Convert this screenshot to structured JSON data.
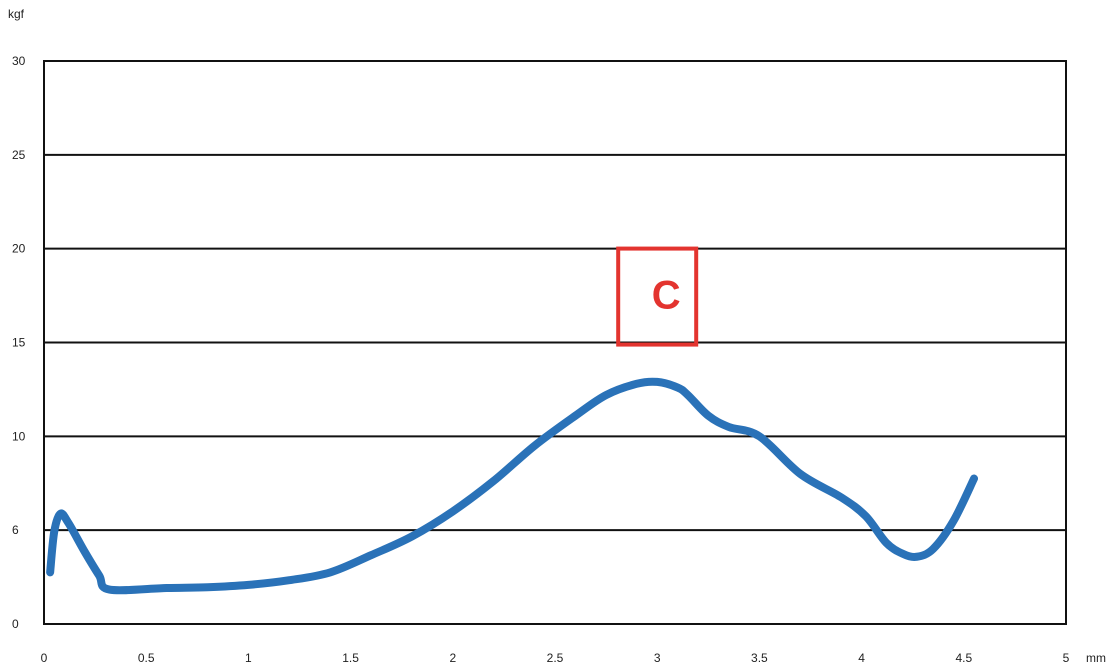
{
  "chart_data": {
    "type": "line",
    "title": "",
    "xlabel": "mm",
    "ylabel": "kgf",
    "xlim": [
      0,
      5
    ],
    "ylim": [
      0,
      30
    ],
    "x_ticks": [
      0,
      0.5,
      1,
      1.5,
      2,
      2.5,
      3,
      3.5,
      4,
      4.5,
      5
    ],
    "x_tick_labels": [
      "0",
      "0.5",
      "1",
      "1.5",
      "2",
      "2.5",
      "3",
      "3.5",
      "4",
      "4.5",
      "5"
    ],
    "y_ticks": [
      0,
      6,
      10,
      15,
      20,
      25,
      30
    ],
    "y_tick_labels": [
      "0",
      "6",
      "10",
      "15",
      "20",
      "25",
      "30"
    ],
    "grid": true,
    "legend": "none",
    "annotation": {
      "text": "C",
      "x": 3.0,
      "y": 17.5,
      "color": "#e3342f"
    },
    "series": [
      {
        "color": "#2a72b8",
        "x": [
          0.03,
          0.05,
          0.08,
          0.12,
          0.2,
          0.27,
          0.32,
          0.6,
          0.8,
          1.0,
          1.2,
          1.4,
          1.6,
          1.8,
          2.0,
          2.2,
          2.4,
          2.6,
          2.75,
          2.9,
          3.0,
          3.1,
          3.15,
          3.25,
          3.35,
          3.5,
          3.7,
          3.9,
          4.02,
          4.12,
          4.2,
          4.27,
          4.35,
          4.45,
          4.55
        ],
        "y": [
          3.3,
          5.9,
          6.7,
          6.3,
          4.6,
          3.1,
          2.2,
          2.3,
          2.35,
          2.5,
          2.8,
          3.3,
          4.4,
          5.6,
          6.8,
          8.1,
          9.6,
          11.1,
          12.2,
          12.8,
          12.9,
          12.6,
          12.2,
          11.1,
          10.5,
          10.0,
          8.4,
          7.4,
          6.6,
          5.2,
          4.5,
          4.3,
          4.8,
          6.4,
          8.2
        ]
      }
    ]
  }
}
